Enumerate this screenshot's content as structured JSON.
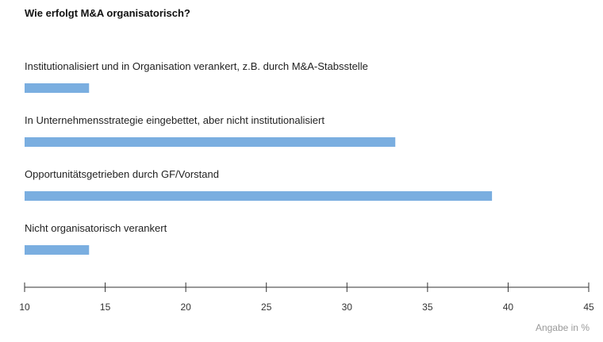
{
  "chart_data": {
    "type": "bar",
    "orientation": "horizontal",
    "title": "Wie erfolgt M&A organisatorisch?",
    "categories": [
      "Institutionalisiert und in Organisation verankert, z.B. durch M&A-Stabsstelle",
      "In Unternehmensstrategie eingebettet, aber nicht institutionalisiert",
      "Opportunitätsgetrieben durch GF/Vorstand",
      "Nicht organisatorisch verankert"
    ],
    "values": [
      14,
      33,
      39,
      14
    ],
    "xlim": [
      10,
      45
    ],
    "xticks": [
      10,
      15,
      20,
      25,
      30,
      35,
      40,
      45
    ],
    "unit_label": "Angabe in %",
    "grid": false,
    "legend": "none",
    "colors": {
      "bar": "#7aaee0",
      "axis": "#333333",
      "unit": "#9a9a9a"
    }
  }
}
